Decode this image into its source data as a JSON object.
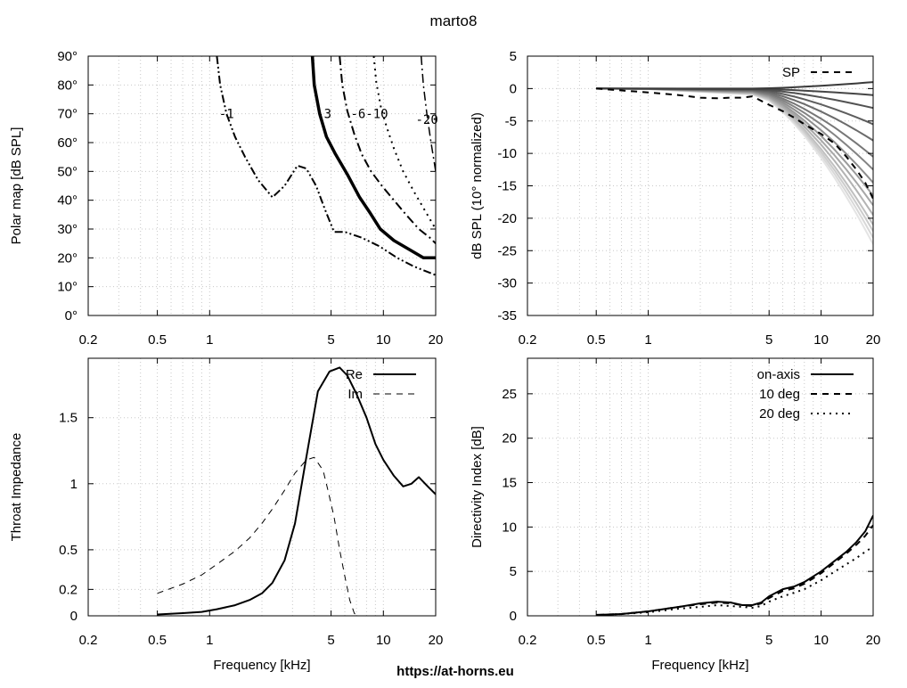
{
  "title": "marto8",
  "footer_url": "https://at-horns.eu",
  "chart_data": [
    {
      "id": "polar",
      "type": "line",
      "subtype": "contour",
      "ylabel": "Polar map [dB SPL]",
      "xlabel": "",
      "xscale": "log",
      "xlim": [
        0.2,
        20
      ],
      "ylim": [
        0,
        90
      ],
      "xticks": [
        0.2,
        0.5,
        1,
        5,
        10,
        20
      ],
      "xtick_labels": [
        "0.2",
        "0.5",
        "1",
        "5",
        "10",
        "20"
      ],
      "yticks": [
        0,
        10,
        20,
        30,
        40,
        50,
        60,
        70,
        80,
        90
      ],
      "ytick_labels": [
        "0°",
        "10°",
        "20°",
        "30°",
        "40°",
        "50°",
        "60°",
        "70°",
        "80°",
        "90°"
      ],
      "grid": true,
      "series": [
        {
          "label": "-1",
          "style": "dash-dot-dot",
          "width": 2,
          "x": [
            1.1,
            1.15,
            1.25,
            1.4,
            1.6,
            1.9,
            2.3,
            2.7,
            3.2,
            3.6,
            4.1,
            4.6,
            5.2,
            6.0,
            7.5,
            9.5,
            12,
            15,
            20
          ],
          "y": [
            90,
            80,
            70,
            62,
            55,
            47,
            41,
            45,
            52,
            51,
            45,
            37,
            29,
            29,
            27,
            24,
            20,
            17,
            14
          ]
        },
        {
          "label": "-3",
          "style": "solid",
          "width": 3.5,
          "x": [
            3.9,
            4.0,
            4.3,
            4.7,
            5.3,
            6.2,
            7.3,
            8.3,
            9.6,
            11.5,
            14,
            17,
            20
          ],
          "y": [
            90,
            80,
            70,
            62,
            56,
            49,
            41,
            36,
            30,
            26,
            23,
            20,
            20
          ]
        },
        {
          "label": "-6",
          "style": "dash-dot",
          "width": 2,
          "x": [
            5.6,
            5.8,
            6.2,
            6.8,
            7.5,
            8.5,
            9.8,
            11.5,
            13.5,
            16,
            18.5,
            20
          ],
          "y": [
            90,
            80,
            71,
            63,
            56,
            50,
            45,
            40,
            35,
            30,
            27,
            25
          ]
        },
        {
          "label": "-10",
          "style": "dotted",
          "width": 2,
          "x": [
            8.8,
            9.1,
            9.7,
            10.5,
            11.5,
            13,
            15,
            17.5,
            20
          ],
          "y": [
            90,
            81,
            72,
            65,
            58,
            50,
            43,
            36,
            30
          ]
        },
        {
          "label": "-20",
          "style": "dash-dot",
          "width": 1.5,
          "x": [
            16.5,
            17,
            17.8,
            18.8,
            20
          ],
          "y": [
            90,
            80,
            70,
            60,
            50
          ]
        }
      ],
      "contour_labels": [
        {
          "text": "-1",
          "x": 1.25,
          "y": 70
        },
        {
          "text": "-3",
          "x": 4.55,
          "y": 70
        },
        {
          "text": "-6-10",
          "x": 8.3,
          "y": 70
        },
        {
          "text": "-20",
          "x": 17.8,
          "y": 68
        }
      ]
    },
    {
      "id": "normalized",
      "type": "line",
      "ylabel": "dB SPL (10° normalized)",
      "xlabel": "",
      "xscale": "log",
      "xlim": [
        0.2,
        20
      ],
      "ylim": [
        -35,
        5
      ],
      "xticks": [
        0.2,
        0.5,
        1,
        5,
        10,
        20
      ],
      "xtick_labels": [
        "0.2",
        "0.5",
        "1",
        "5",
        "10",
        "20"
      ],
      "yticks": [
        -35,
        -30,
        -25,
        -20,
        -15,
        -10,
        -5,
        0,
        5
      ],
      "ytick_labels": [
        "-35",
        "-30",
        "-25",
        "-20",
        "-15",
        "-10",
        "-5",
        "0",
        "5"
      ],
      "grid": true,
      "legend": {
        "position": "top-right",
        "entries": [
          {
            "label": "SP",
            "style": "dashed"
          }
        ]
      },
      "x": [
        0.5,
        1,
        1.5,
        2,
        2.5,
        3,
        3.5,
        4,
        5,
        6,
        7,
        8,
        10,
        12,
        14,
        16,
        18,
        20
      ],
      "series": [
        {
          "name": "SP",
          "style": "dashed",
          "color": "#000000",
          "width": 2,
          "values": [
            0,
            -0.6,
            -1.0,
            -1.4,
            -1.5,
            -1.4,
            -1.4,
            -1.2,
            -2.5,
            -3.5,
            -4.5,
            -5.5,
            -7,
            -8.5,
            -10.5,
            -12.5,
            -14.5,
            -17
          ]
        }
      ],
      "fan": {
        "count": 15,
        "color_dark": "#3a3a3a",
        "color_light": "#e4e4e4",
        "hf_end_values": [
          1,
          -1,
          -3,
          -5.5,
          -8,
          -10.5,
          -12.5,
          -14.5,
          -16.5,
          -18,
          -19.5,
          -21,
          -22,
          -23,
          -24
        ]
      }
    },
    {
      "id": "impedance",
      "type": "line",
      "ylabel": "Throat Impedance",
      "xlabel": "Frequency [kHz]",
      "xscale": "log",
      "xlim": [
        0.2,
        20
      ],
      "ylim": [
        0,
        1.95
      ],
      "xticks": [
        0.2,
        0.5,
        1,
        5,
        10,
        20
      ],
      "xtick_labels": [
        "0.2",
        "0.5",
        "1",
        "5",
        "10",
        "20"
      ],
      "yticks": [
        0,
        0.2,
        0.5,
        1,
        1.5
      ],
      "ytick_labels": [
        "0",
        "0.2",
        "0.5",
        "1",
        "1.5"
      ],
      "grid": true,
      "legend": {
        "position": "top-right",
        "entries": [
          {
            "label": "Re",
            "style": "solid"
          },
          {
            "label": "Im",
            "style": "dashed"
          }
        ]
      },
      "series": [
        {
          "name": "Re",
          "style": "solid",
          "width": 2,
          "x": [
            0.5,
            0.7,
            0.9,
            1.1,
            1.4,
            1.7,
            2.0,
            2.3,
            2.7,
            3.1,
            3.6,
            4.2,
            4.9,
            5.6,
            6.2,
            7.0,
            8.0,
            9.0,
            10.0,
            11.5,
            13.0,
            14.5,
            16.0,
            18.0,
            20.0
          ],
          "values": [
            0.01,
            0.02,
            0.03,
            0.05,
            0.08,
            0.12,
            0.17,
            0.25,
            0.42,
            0.7,
            1.2,
            1.7,
            1.85,
            1.88,
            1.82,
            1.68,
            1.5,
            1.3,
            1.18,
            1.06,
            0.98,
            1.0,
            1.05,
            0.98,
            0.92
          ]
        },
        {
          "name": "Im",
          "style": "dashed",
          "width": 1,
          "x": [
            0.5,
            0.7,
            0.9,
            1.1,
            1.4,
            1.7,
            2.0,
            2.3,
            2.7,
            3.1,
            3.6,
            4.0,
            4.5,
            4.8,
            5.2,
            5.6,
            6.0,
            6.4,
            6.8,
            7.0
          ],
          "values": [
            0.17,
            0.24,
            0.31,
            0.39,
            0.49,
            0.59,
            0.7,
            0.81,
            0.95,
            1.08,
            1.18,
            1.2,
            1.1,
            0.95,
            0.75,
            0.5,
            0.3,
            0.12,
            0.02,
            0.0
          ]
        }
      ]
    },
    {
      "id": "di",
      "type": "line",
      "ylabel": "Directivity Index [dB]",
      "xlabel": "Frequency [kHz]",
      "xscale": "log",
      "xlim": [
        0.2,
        20
      ],
      "ylim": [
        0,
        29
      ],
      "xticks": [
        0.2,
        0.5,
        1,
        5,
        10,
        20
      ],
      "xtick_labels": [
        "0.2",
        "0.5",
        "1",
        "5",
        "10",
        "20"
      ],
      "yticks": [
        0,
        5,
        10,
        15,
        20,
        25
      ],
      "ytick_labels": [
        "0",
        "5",
        "10",
        "15",
        "20",
        "25"
      ],
      "grid": true,
      "legend": {
        "position": "top-right",
        "entries": [
          {
            "label": "on-axis",
            "style": "solid"
          },
          {
            "label": "10 deg",
            "style": "dashed"
          },
          {
            "label": "20 deg",
            "style": "dotted"
          }
        ]
      },
      "x": [
        0.5,
        0.7,
        1,
        1.5,
        2,
        2.5,
        3,
        3.5,
        4,
        4.5,
        5,
        6,
        7,
        8,
        10,
        12,
        14,
        16,
        18,
        20
      ],
      "series": [
        {
          "name": "on-axis",
          "style": "solid",
          "width": 2,
          "values": [
            0.1,
            0.2,
            0.5,
            1.0,
            1.4,
            1.6,
            1.5,
            1.2,
            1.2,
            1.5,
            2.2,
            3.0,
            3.3,
            3.8,
            5.0,
            6.2,
            7.2,
            8.3,
            9.5,
            11.3
          ]
        },
        {
          "name": "10 deg",
          "style": "dashed",
          "width": 2,
          "values": [
            0.1,
            0.2,
            0.5,
            1.0,
            1.3,
            1.5,
            1.4,
            1.2,
            1.1,
            1.4,
            2.0,
            2.8,
            3.1,
            3.6,
            4.8,
            6.0,
            7.0,
            8.0,
            9.0,
            10.2
          ]
        },
        {
          "name": "20 deg",
          "style": "dotted",
          "width": 2,
          "values": [
            0.1,
            0.2,
            0.4,
            0.8,
            1.0,
            1.2,
            1.1,
            1.0,
            0.9,
            1.1,
            1.6,
            2.2,
            2.6,
            3.0,
            4.0,
            5.0,
            5.8,
            6.5,
            7.2,
            7.8
          ]
        }
      ]
    }
  ]
}
